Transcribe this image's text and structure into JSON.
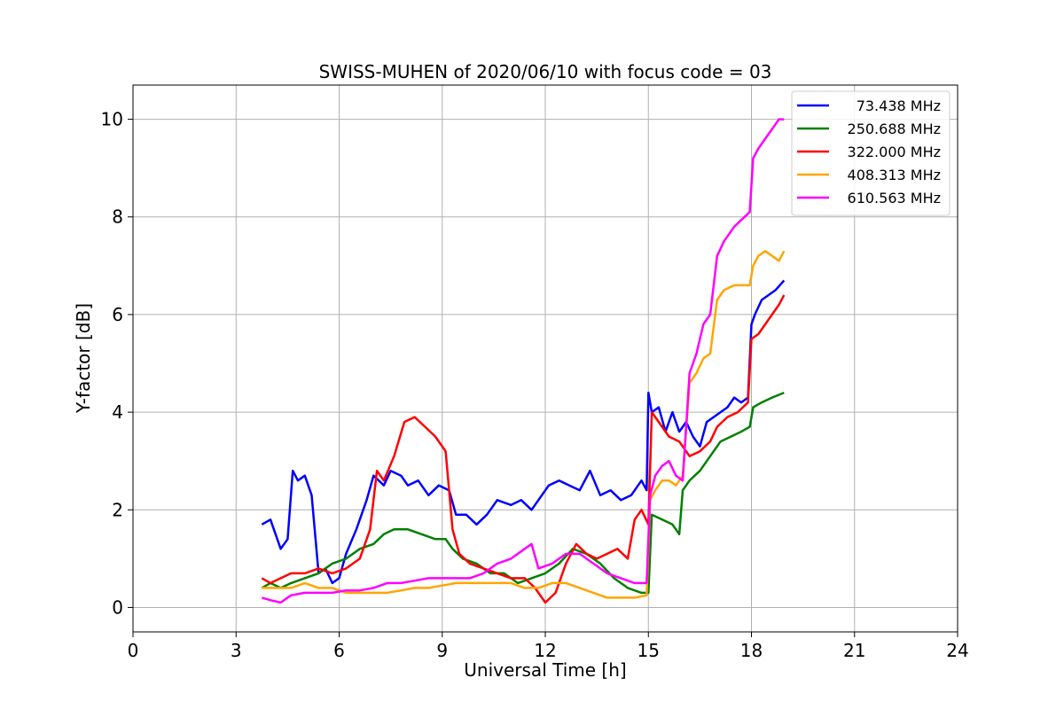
{
  "chart_data": {
    "type": "line",
    "title": "SWISS-MUHEN of 2020/06/10 with focus code = 03",
    "xlabel": "Universal Time [h]",
    "ylabel": "Y-factor [dB]",
    "xlim": [
      0,
      24
    ],
    "ylim": [
      -0.5,
      10.7
    ],
    "xticks": [
      "0",
      "3",
      "6",
      "9",
      "12",
      "15",
      "18",
      "21",
      "24"
    ],
    "yticks": [
      "0",
      "2",
      "4",
      "6",
      "8",
      "10"
    ],
    "grid": true,
    "legend_position": "top-right",
    "series": [
      {
        "name": "73.438 MHz",
        "color": "#0000ff",
        "x": [
          3.75,
          4.0,
          4.3,
          4.5,
          4.65,
          4.8,
          5.0,
          5.2,
          5.4,
          5.6,
          5.8,
          6.0,
          6.2,
          6.5,
          6.8,
          7.0,
          7.3,
          7.5,
          7.8,
          8.0,
          8.3,
          8.6,
          8.9,
          9.2,
          9.4,
          9.7,
          10.0,
          10.3,
          10.6,
          11.0,
          11.3,
          11.6,
          11.9,
          12.1,
          12.4,
          12.7,
          13.0,
          13.3,
          13.6,
          13.9,
          14.2,
          14.5,
          14.8,
          14.95,
          15.0,
          15.1,
          15.3,
          15.5,
          15.7,
          15.9,
          16.1,
          16.3,
          16.5,
          16.7,
          16.9,
          17.1,
          17.3,
          17.5,
          17.7,
          17.9,
          18.0,
          18.1,
          18.3,
          18.5,
          18.7,
          18.95
        ],
        "values": [
          1.7,
          1.8,
          1.2,
          1.4,
          2.8,
          2.6,
          2.7,
          2.3,
          0.7,
          0.8,
          0.5,
          0.6,
          1.1,
          1.6,
          2.2,
          2.7,
          2.5,
          2.8,
          2.7,
          2.5,
          2.6,
          2.3,
          2.5,
          2.4,
          1.9,
          1.9,
          1.7,
          1.9,
          2.2,
          2.1,
          2.2,
          2.0,
          2.3,
          2.5,
          2.6,
          2.5,
          2.4,
          2.8,
          2.3,
          2.4,
          2.2,
          2.3,
          2.6,
          2.4,
          4.4,
          4.0,
          4.1,
          3.6,
          4.0,
          3.6,
          3.8,
          3.5,
          3.3,
          3.8,
          3.9,
          4.0,
          4.1,
          4.3,
          4.2,
          4.3,
          5.8,
          6.0,
          6.3,
          6.4,
          6.5,
          6.7
        ]
      },
      {
        "name": "250.688 MHz",
        "color": "#008000",
        "x": [
          3.75,
          4.0,
          4.3,
          4.6,
          5.0,
          5.4,
          5.8,
          6.2,
          6.6,
          7.0,
          7.3,
          7.6,
          8.0,
          8.4,
          8.8,
          9.1,
          9.3,
          9.6,
          10.0,
          10.4,
          10.8,
          11.2,
          11.6,
          12.0,
          12.4,
          12.8,
          13.2,
          13.6,
          14.0,
          14.4,
          14.8,
          15.0,
          15.1,
          15.4,
          15.7,
          15.9,
          16.0,
          16.2,
          16.5,
          16.8,
          17.1,
          17.4,
          17.7,
          17.95,
          18.05,
          18.3,
          18.6,
          18.95
        ],
        "values": [
          0.4,
          0.5,
          0.4,
          0.5,
          0.6,
          0.7,
          0.9,
          1.0,
          1.2,
          1.3,
          1.5,
          1.6,
          1.6,
          1.5,
          1.4,
          1.4,
          1.2,
          1.0,
          0.9,
          0.7,
          0.7,
          0.5,
          0.6,
          0.7,
          0.9,
          1.2,
          1.1,
          0.9,
          0.6,
          0.4,
          0.3,
          0.3,
          1.9,
          1.8,
          1.7,
          1.5,
          2.4,
          2.6,
          2.8,
          3.1,
          3.4,
          3.5,
          3.6,
          3.7,
          4.1,
          4.2,
          4.3,
          4.4
        ]
      },
      {
        "name": "322.000 MHz",
        "color": "#ff0000",
        "x": [
          3.75,
          4.0,
          4.3,
          4.6,
          5.0,
          5.4,
          5.8,
          6.2,
          6.6,
          6.9,
          7.1,
          7.3,
          7.6,
          7.9,
          8.2,
          8.5,
          8.8,
          9.1,
          9.3,
          9.5,
          9.8,
          10.2,
          10.6,
          11.0,
          11.4,
          11.7,
          12.0,
          12.3,
          12.6,
          12.9,
          13.2,
          13.5,
          13.8,
          14.1,
          14.4,
          14.6,
          14.8,
          15.0,
          15.1,
          15.3,
          15.6,
          15.9,
          16.2,
          16.5,
          16.8,
          17.0,
          17.3,
          17.6,
          17.9,
          18.0,
          18.2,
          18.5,
          18.8,
          18.95
        ],
        "values": [
          0.6,
          0.5,
          0.6,
          0.7,
          0.7,
          0.8,
          0.7,
          0.8,
          1.0,
          1.6,
          2.8,
          2.6,
          3.1,
          3.8,
          3.9,
          3.7,
          3.5,
          3.2,
          1.6,
          1.1,
          0.9,
          0.8,
          0.7,
          0.6,
          0.6,
          0.4,
          0.1,
          0.3,
          0.9,
          1.3,
          1.1,
          1.0,
          1.1,
          1.2,
          1.0,
          1.8,
          2.0,
          1.7,
          4.0,
          3.8,
          3.5,
          3.4,
          3.1,
          3.2,
          3.4,
          3.7,
          3.9,
          4.0,
          4.2,
          5.5,
          5.6,
          5.9,
          6.2,
          6.4
        ]
      },
      {
        "name": "408.313 MHz",
        "color": "#ffa500",
        "x": [
          3.75,
          4.0,
          4.3,
          4.6,
          5.0,
          5.4,
          5.8,
          6.2,
          6.6,
          7.0,
          7.4,
          7.8,
          8.2,
          8.6,
          9.0,
          9.4,
          9.8,
          10.2,
          10.6,
          11.0,
          11.4,
          11.8,
          12.2,
          12.6,
          13.0,
          13.4,
          13.8,
          14.2,
          14.6,
          14.95,
          15.05,
          15.2,
          15.4,
          15.6,
          15.8,
          16.0,
          16.2,
          16.4,
          16.6,
          16.8,
          17.0,
          17.2,
          17.5,
          17.8,
          17.95,
          18.05,
          18.2,
          18.4,
          18.6,
          18.8,
          18.95
        ],
        "values": [
          0.4,
          0.4,
          0.4,
          0.4,
          0.5,
          0.4,
          0.4,
          0.3,
          0.3,
          0.3,
          0.3,
          0.35,
          0.4,
          0.4,
          0.45,
          0.5,
          0.5,
          0.5,
          0.5,
          0.5,
          0.4,
          0.4,
          0.5,
          0.5,
          0.4,
          0.3,
          0.2,
          0.2,
          0.2,
          0.25,
          2.2,
          2.4,
          2.6,
          2.6,
          2.5,
          2.7,
          4.6,
          4.8,
          5.1,
          5.2,
          6.3,
          6.5,
          6.6,
          6.6,
          6.6,
          7.0,
          7.2,
          7.3,
          7.2,
          7.1,
          7.3
        ]
      },
      {
        "name": "610.563 MHz",
        "color": "#ff00ff",
        "x": [
          3.75,
          4.0,
          4.3,
          4.6,
          5.0,
          5.4,
          5.8,
          6.2,
          6.6,
          7.0,
          7.4,
          7.8,
          8.2,
          8.6,
          9.0,
          9.4,
          9.8,
          10.2,
          10.6,
          11.0,
          11.4,
          11.6,
          11.8,
          12.2,
          12.6,
          13.0,
          13.4,
          13.8,
          14.2,
          14.6,
          14.95,
          15.05,
          15.2,
          15.4,
          15.6,
          15.8,
          16.0,
          16.2,
          16.4,
          16.6,
          16.8,
          17.0,
          17.2,
          17.5,
          17.8,
          17.95,
          18.05,
          18.2,
          18.4,
          18.6,
          18.8,
          18.95
        ],
        "values": [
          0.2,
          0.15,
          0.1,
          0.25,
          0.3,
          0.3,
          0.3,
          0.35,
          0.35,
          0.4,
          0.5,
          0.5,
          0.55,
          0.6,
          0.6,
          0.6,
          0.6,
          0.7,
          0.9,
          1.0,
          1.2,
          1.3,
          0.8,
          0.9,
          1.1,
          1.1,
          0.9,
          0.7,
          0.6,
          0.5,
          0.5,
          2.3,
          2.7,
          2.9,
          3.0,
          2.7,
          2.6,
          4.8,
          5.2,
          5.8,
          6.0,
          7.2,
          7.5,
          7.8,
          8.0,
          8.1,
          9.2,
          9.4,
          9.6,
          9.8,
          10.0,
          10.0
        ]
      }
    ]
  }
}
